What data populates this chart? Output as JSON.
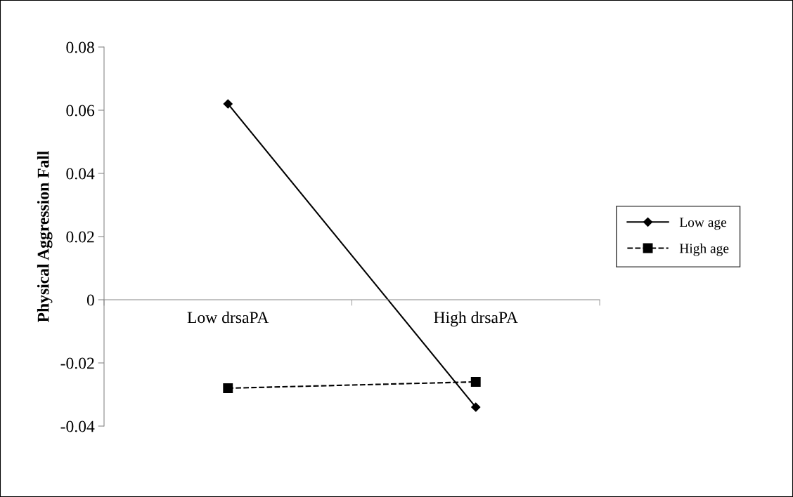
{
  "chart_data": {
    "type": "line",
    "ylabel": "Physical Aggression Fall",
    "categories": [
      "Low drsaPA",
      "High drsaPA"
    ],
    "series": [
      {
        "name": "Low age",
        "color": "#000000",
        "values": [
          0.062,
          -0.034
        ],
        "marker": "diamond",
        "line_style": "solid"
      },
      {
        "name": "High age",
        "color": "#000000",
        "values": [
          -0.028,
          -0.026
        ],
        "marker": "square",
        "line_style": "dashed"
      }
    ],
    "ylim": [
      -0.04,
      0.08
    ],
    "yticks": [
      {
        "value": -0.04,
        "label": "-0.04"
      },
      {
        "value": -0.02,
        "label": "-0.02"
      },
      0,
      {
        "value": 0.02,
        "label": "0.02"
      },
      {
        "value": 0.04,
        "label": "0.04"
      },
      {
        "value": 0.06,
        "label": "0.06"
      },
      {
        "value": 0.08,
        "label": "0.08"
      }
    ],
    "grid": false,
    "legend": "right"
  }
}
